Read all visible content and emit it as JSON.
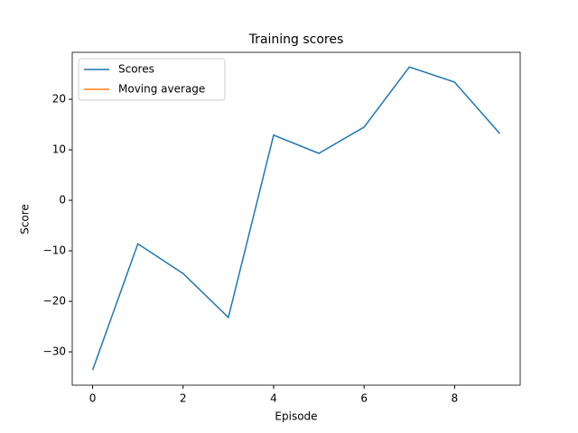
{
  "chart_data": {
    "type": "line",
    "title": "Training scores",
    "xlabel": "Episode",
    "ylabel": "Score",
    "x": [
      0,
      1,
      2,
      3,
      4,
      5,
      6,
      7,
      8,
      9
    ],
    "series": [
      {
        "name": "Scores",
        "color": "#1f77b4",
        "values": [
          -33.6,
          -8.6,
          -14.5,
          -23.2,
          12.9,
          9.3,
          14.5,
          26.4,
          23.4,
          13.2
        ]
      },
      {
        "name": "Moving average",
        "color": "#ff7f0e",
        "values": [
          null,
          null,
          null,
          null,
          null,
          null,
          null,
          null,
          null,
          null
        ]
      }
    ],
    "xlim": [
      -0.45,
      9.45
    ],
    "xticks": [
      0,
      2,
      4,
      6,
      8
    ],
    "ylim": [
      -36.6,
      29.3
    ],
    "yticks": [
      {
        "value": -30,
        "label": "−30"
      },
      {
        "value": -20,
        "label": "−20"
      },
      {
        "value": -10,
        "label": "−10"
      },
      0,
      10,
      20
    ],
    "legend": "upper left"
  }
}
